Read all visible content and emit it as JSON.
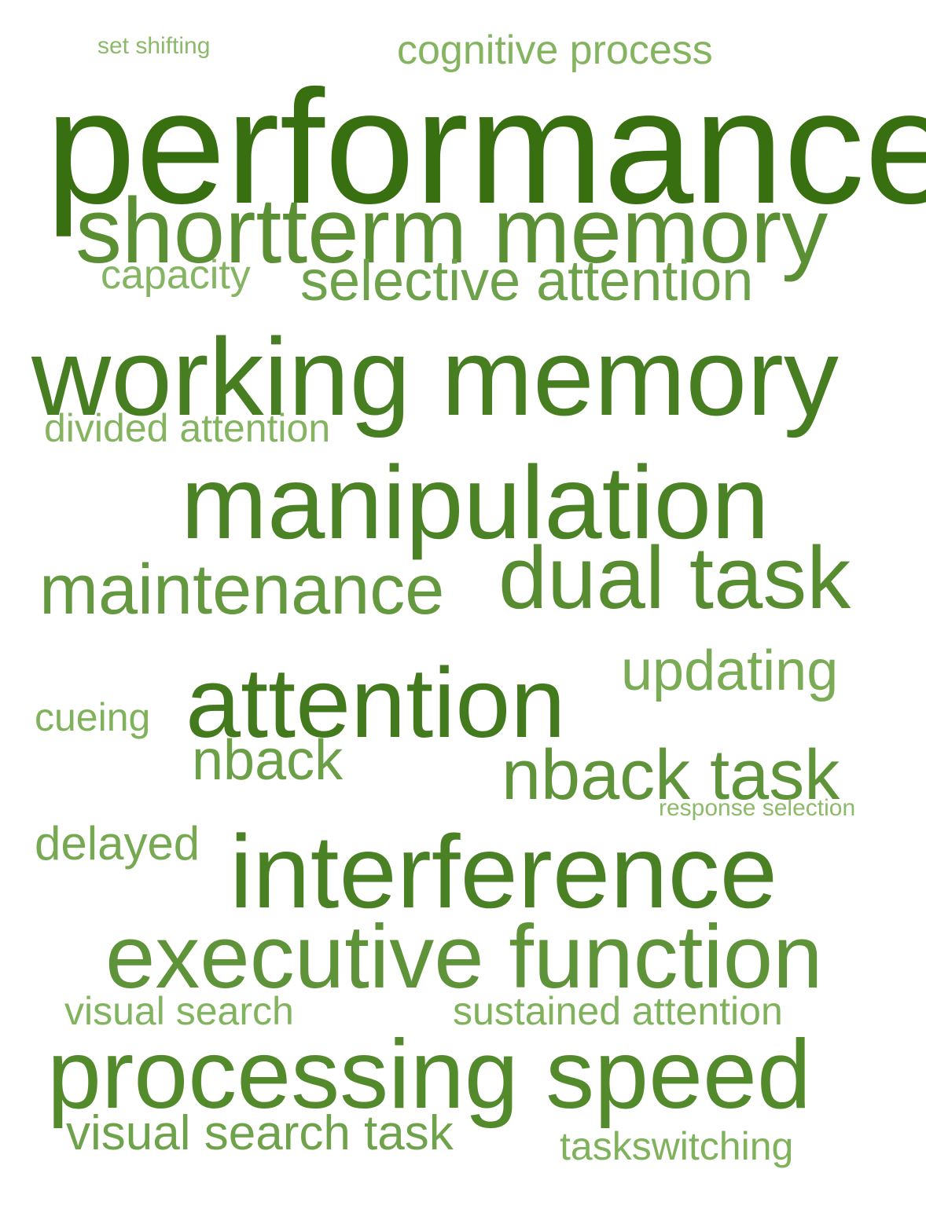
{
  "words": [
    {
      "text": "set shifting",
      "color": "#8dba6a"
    },
    {
      "text": "cognitive process",
      "color": "#84b45f"
    },
    {
      "text": "performance",
      "color": "#386f10"
    },
    {
      "text": "shortterm memory",
      "color": "#5b8f34"
    },
    {
      "text": "capacity",
      "color": "#85b563"
    },
    {
      "text": "selective attention",
      "color": "#6da24a"
    },
    {
      "text": "working memory",
      "color": "#477e22"
    },
    {
      "text": "divided attention",
      "color": "#84b45f"
    },
    {
      "text": "manipulation",
      "color": "#4b8226"
    },
    {
      "text": "maintenance",
      "color": "#64993f"
    },
    {
      "text": "dual task",
      "color": "#578c31"
    },
    {
      "text": "updating",
      "color": "#7aac56"
    },
    {
      "text": "cueing",
      "color": "#80b25c"
    },
    {
      "text": "attention",
      "color": "#437a1d"
    },
    {
      "text": "nback",
      "color": "#6ba047"
    },
    {
      "text": "nback task",
      "color": "#5f943a"
    },
    {
      "text": "response selection",
      "color": "#8dba6a"
    },
    {
      "text": "delayed",
      "color": "#76a952"
    },
    {
      "text": "interference",
      "color": "#4a8125"
    },
    {
      "text": "executive function",
      "color": "#5e9339"
    },
    {
      "text": "visual search",
      "color": "#82b35e"
    },
    {
      "text": "sustained attention",
      "color": "#80b25c"
    },
    {
      "text": "processing speed",
      "color": "#528a2c"
    },
    {
      "text": "visual search task",
      "color": "#6ea34b"
    },
    {
      "text": "taskswitching",
      "color": "#80b25c"
    }
  ]
}
